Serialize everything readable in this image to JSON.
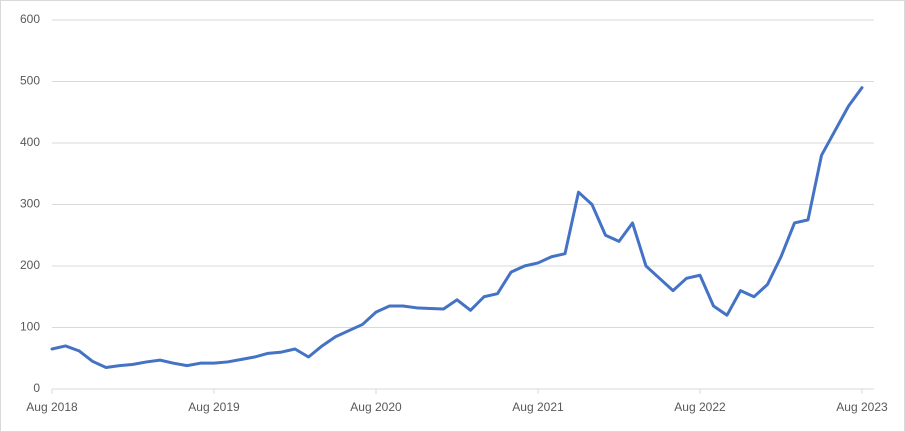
{
  "chart_data": {
    "type": "line",
    "categories": [
      "Aug 2018",
      null,
      null,
      null,
      null,
      null,
      null,
      null,
      null,
      null,
      null,
      null,
      "Aug 2019",
      null,
      null,
      null,
      null,
      null,
      null,
      null,
      null,
      null,
      null,
      null,
      "Aug 2020",
      null,
      null,
      null,
      null,
      null,
      null,
      null,
      null,
      null,
      null,
      null,
      "Aug 2021",
      null,
      null,
      null,
      null,
      null,
      null,
      null,
      null,
      null,
      null,
      null,
      "Aug 2022",
      null,
      null,
      null,
      null,
      null,
      null,
      null,
      null,
      null,
      null,
      null,
      "Aug 2023"
    ],
    "values": [
      65,
      70,
      62,
      45,
      35,
      38,
      40,
      44,
      47,
      42,
      38,
      42,
      42,
      44,
      48,
      52,
      58,
      60,
      65,
      52,
      70,
      85,
      95,
      105,
      125,
      135,
      135,
      132,
      131,
      130,
      145,
      128,
      150,
      155,
      190,
      200,
      205,
      215,
      220,
      320,
      300,
      250,
      240,
      270,
      200,
      180,
      160,
      180,
      185,
      135,
      120,
      160,
      150,
      170,
      215,
      270,
      275,
      380,
      420,
      460,
      490
    ],
    "color": "#4472c4",
    "ylim": [
      0,
      600
    ],
    "yticks": [
      0,
      100,
      200,
      300,
      400,
      500,
      600
    ],
    "grid": true
  }
}
